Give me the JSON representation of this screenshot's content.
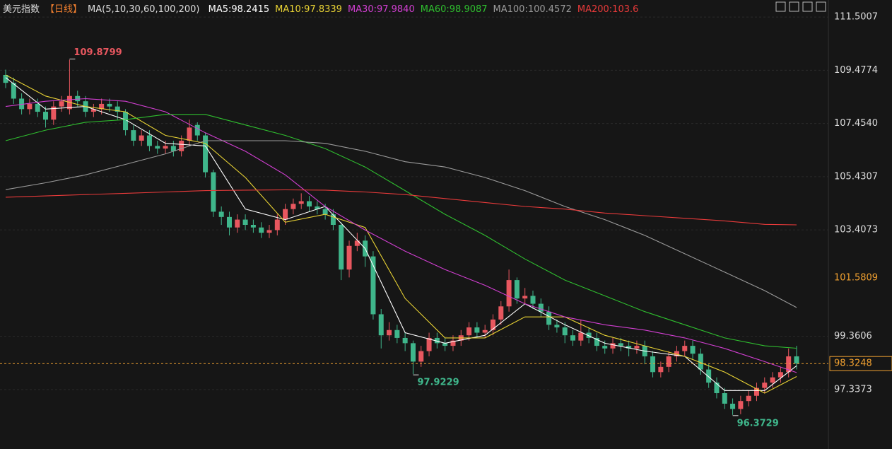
{
  "chart_data": {
    "type": "candlestick",
    "header": {
      "title": "美元指数",
      "period": "【日线】",
      "ma_title": "MA(5,10,30,60,100,200)"
    },
    "up_color": "#e8575f",
    "down_color": "#3fb68b",
    "ylim": [
      95.48,
      112.15
    ],
    "yticks": [
      111.5007,
      109.4774,
      {
        "value": 107.454,
        "label": "107.4540"
      },
      105.4307,
      103.4073,
      99.3606,
      97.3373
    ],
    "grid": true,
    "open": [
      109.3,
      109.0,
      108.4,
      108.0,
      108.2,
      107.9,
      107.6,
      108.1,
      108.0,
      108.5,
      108.3,
      107.9,
      108.0,
      108.2,
      108.1,
      107.9,
      107.2,
      106.8,
      107.0,
      106.6,
      106.5,
      106.6,
      106.4,
      106.8,
      107.4,
      107.0,
      105.6,
      104.1,
      103.9,
      103.5,
      103.8,
      103.6,
      103.5,
      103.3,
      103.4,
      103.8,
      104.2,
      104.4,
      104.5,
      104.3,
      104.2,
      104.0,
      103.6,
      101.9,
      102.8,
      103.0,
      102.4,
      100.2,
      99.4,
      99.6,
      99.3,
      99.1,
      98.4,
      98.8,
      99.3,
      99.1,
      99.0,
      99.2,
      99.4,
      99.7,
      99.5,
      99.6,
      100.0,
      100.5,
      101.5,
      100.8,
      100.9,
      100.6,
      100.3,
      99.8,
      99.7,
      99.4,
      99.2,
      99.5,
      99.3,
      99.0,
      98.9,
      99.1,
      99.0,
      98.9,
      99.0,
      98.6,
      98.0,
      98.2,
      98.6,
      98.8,
      99.0,
      98.7,
      98.1,
      97.6,
      97.2,
      96.8,
      96.6,
      96.9,
      97.1,
      97.4,
      97.6,
      97.8,
      98.0,
      98.6
    ],
    "high": [
      109.5,
      109.2,
      108.6,
      108.4,
      108.4,
      108.1,
      108.3,
      108.5,
      109.8799,
      108.7,
      108.5,
      108.2,
      108.4,
      108.4,
      108.3,
      108.0,
      107.4,
      107.2,
      107.2,
      106.8,
      106.8,
      106.8,
      107.0,
      107.6,
      107.5,
      107.1,
      105.7,
      104.3,
      104.1,
      104.0,
      104.0,
      103.8,
      103.7,
      103.6,
      104.0,
      104.4,
      104.6,
      104.8,
      104.7,
      104.5,
      104.4,
      104.2,
      103.7,
      103.0,
      103.3,
      103.2,
      102.6,
      100.4,
      99.9,
      99.8,
      99.5,
      99.2,
      99.0,
      99.5,
      99.5,
      99.3,
      99.4,
      99.6,
      99.9,
      99.9,
      99.8,
      100.2,
      100.7,
      101.9,
      101.6,
      101.2,
      101.1,
      100.8,
      100.5,
      100.0,
      99.9,
      99.6,
      100.0,
      99.7,
      99.5,
      99.2,
      99.3,
      99.3,
      99.2,
      99.2,
      99.2,
      98.8,
      98.4,
      98.8,
      99.0,
      99.2,
      99.2,
      98.9,
      98.3,
      97.8,
      97.4,
      97.0,
      97.1,
      97.3,
      97.6,
      97.8,
      98.0,
      98.2,
      98.9,
      99.0
    ],
    "low": [
      108.8,
      108.2,
      107.8,
      107.8,
      107.7,
      107.3,
      107.4,
      107.9,
      107.8,
      108.1,
      107.7,
      107.7,
      107.8,
      107.9,
      107.6,
      107.0,
      106.6,
      106.6,
      106.4,
      106.3,
      106.3,
      106.2,
      106.2,
      106.6,
      106.8,
      105.4,
      103.9,
      103.6,
      103.2,
      103.3,
      103.4,
      103.3,
      103.1,
      103.1,
      103.2,
      103.6,
      104.0,
      104.2,
      104.1,
      104.0,
      103.8,
      103.4,
      101.5,
      101.6,
      102.6,
      102.0,
      100.0,
      98.9,
      99.2,
      99.1,
      98.8,
      97.9229,
      98.2,
      98.6,
      98.9,
      98.8,
      98.8,
      99.0,
      99.2,
      99.3,
      99.3,
      99.4,
      99.8,
      100.3,
      100.6,
      100.6,
      100.4,
      100.1,
      99.6,
      99.5,
      99.1,
      99.0,
      99.0,
      99.1,
      98.8,
      98.7,
      98.7,
      98.8,
      98.6,
      98.7,
      98.3,
      97.8,
      97.8,
      98.0,
      98.4,
      98.6,
      98.5,
      97.9,
      97.4,
      97.0,
      96.6,
      96.3729,
      96.4,
      96.7,
      96.9,
      97.2,
      97.4,
      97.6,
      97.8,
      98.1
    ],
    "close": [
      109.0,
      108.4,
      108.0,
      108.2,
      107.9,
      107.6,
      108.1,
      108.3,
      108.5,
      108.3,
      107.9,
      108.0,
      108.2,
      108.1,
      107.9,
      107.2,
      106.8,
      107.0,
      106.6,
      106.5,
      106.6,
      106.4,
      106.8,
      107.3,
      107.0,
      105.6,
      104.1,
      103.9,
      103.5,
      103.8,
      103.6,
      103.5,
      103.3,
      103.4,
      103.8,
      104.2,
      104.4,
      104.5,
      104.3,
      104.2,
      104.0,
      103.6,
      101.9,
      102.8,
      103.0,
      102.4,
      100.2,
      99.4,
      99.6,
      99.3,
      99.1,
      98.4,
      98.8,
      99.3,
      99.1,
      99.0,
      99.2,
      99.4,
      99.7,
      99.5,
      99.6,
      100.0,
      100.5,
      101.5,
      100.8,
      100.9,
      100.6,
      100.3,
      99.8,
      99.7,
      99.4,
      99.2,
      99.5,
      99.3,
      99.0,
      98.9,
      99.1,
      99.0,
      98.9,
      99.0,
      98.6,
      98.0,
      98.2,
      98.6,
      98.8,
      99.0,
      98.7,
      98.1,
      97.6,
      97.2,
      96.8,
      96.6,
      96.9,
      97.1,
      97.4,
      97.6,
      97.8,
      98.0,
      98.6,
      98.3248
    ],
    "ma_x": [
      0,
      5,
      10,
      15,
      20,
      25,
      30,
      35,
      40,
      45,
      50,
      55,
      60,
      65,
      70,
      75,
      80,
      85,
      90,
      95,
      99
    ],
    "series": [
      {
        "name": "MA5:98.2415",
        "color": "#ffffff",
        "values": [
          109.2,
          108.0,
          108.1,
          107.6,
          106.7,
          106.6,
          104.2,
          103.8,
          104.3,
          102.7,
          99.5,
          99.1,
          99.4,
          100.6,
          99.8,
          99.1,
          98.8,
          98.6,
          97.3,
          97.3,
          98.2415
        ]
      },
      {
        "name": "MA10:97.8339",
        "color": "#e8d234",
        "values": [
          109.3,
          108.5,
          108.1,
          107.9,
          107.0,
          106.7,
          105.4,
          103.7,
          104.0,
          103.5,
          100.8,
          99.3,
          99.3,
          100.1,
          100.1,
          99.4,
          99.0,
          98.6,
          98.0,
          97.2,
          97.8339
        ]
      },
      {
        "name": "MA30:97.9840",
        "color": "#d23fd2",
        "values": [
          108.1,
          108.3,
          108.4,
          108.3,
          107.9,
          107.1,
          106.4,
          105.5,
          104.3,
          103.4,
          102.6,
          101.9,
          101.3,
          100.6,
          100.1,
          99.8,
          99.6,
          99.3,
          98.9,
          98.4,
          97.984
        ]
      },
      {
        "name": "MA60:98.9087",
        "color": "#2fbf2f",
        "values": [
          106.8,
          107.2,
          107.5,
          107.6,
          107.8,
          107.8,
          107.4,
          107.0,
          106.5,
          105.8,
          104.9,
          104.0,
          103.2,
          102.3,
          101.5,
          100.9,
          100.3,
          99.8,
          99.3,
          99.0,
          98.9087
        ]
      },
      {
        "name": "MA100:100.4572",
        "color": "#9a9a9a",
        "values": [
          104.94,
          105.2,
          105.5,
          105.9,
          106.3,
          106.8,
          106.8,
          106.8,
          106.7,
          106.4,
          106.0,
          105.8,
          105.4,
          104.9,
          104.3,
          103.8,
          103.2,
          102.5,
          101.8,
          101.1,
          100.4572
        ]
      },
      {
        "name": "MA200:103.6",
        "color": "#e83a3a",
        "values": [
          104.65,
          104.7,
          104.75,
          104.8,
          104.85,
          104.9,
          104.92,
          104.93,
          104.92,
          104.85,
          104.75,
          104.6,
          104.45,
          104.3,
          104.2,
          104.05,
          103.95,
          103.85,
          103.75,
          103.62,
          103.6
        ]
      }
    ],
    "high_label": 109.8799,
    "low_labels": [
      97.9229,
      96.3729
    ],
    "last_price": 98.3248,
    "last_price_color": "#f0a030",
    "cursor_price": 101.5809
  }
}
